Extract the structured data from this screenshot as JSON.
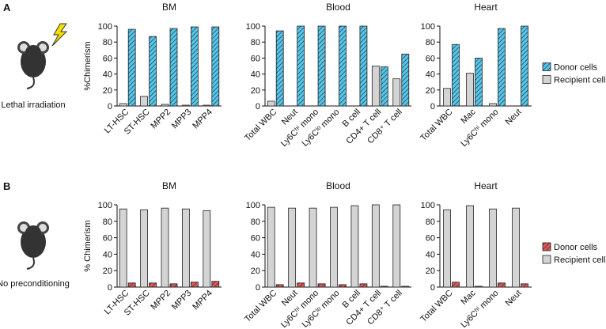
{
  "panels": [
    {
      "label": "A",
      "caption": "Lethal irradiation"
    },
    {
      "label": "B",
      "caption": "No preconditioning"
    }
  ],
  "chart_data": [
    {
      "type": "bar",
      "title": "BM",
      "ylabel": "%Chimerism",
      "categories": [
        "LT-HSC",
        "ST-HSC",
        "MPP2",
        "MPP3",
        "MPP4"
      ],
      "series": [
        {
          "name": "Recipient cells",
          "color": "#d4d4d4",
          "values": [
            3,
            12,
            2,
            1,
            1
          ]
        },
        {
          "name": "Donor cells",
          "color": "#55c6ea",
          "hatch": true,
          "values": [
            96,
            87,
            97,
            99,
            99
          ]
        }
      ],
      "ylim": [
        0,
        100
      ],
      "yticks": [
        0,
        20,
        40,
        60,
        80,
        100
      ]
    },
    {
      "type": "bar",
      "title": "Blood",
      "categories": [
        "Total WBC",
        "Neut",
        "Ly6Cʰⁱ mono",
        "Ly6Cˡᵒ mono",
        "B cell",
        "CD4+ T cell",
        "CD8⁺ T cell"
      ],
      "series": [
        {
          "name": "Recipient cells",
          "color": "#d4d4d4",
          "values": [
            6,
            0,
            0,
            0,
            0,
            50,
            34
          ]
        },
        {
          "name": "Donor cells",
          "color": "#55c6ea",
          "hatch": true,
          "values": [
            94,
            100,
            100,
            100,
            100,
            49,
            65
          ]
        }
      ],
      "ylim": [
        0,
        100
      ],
      "yticks": [
        0,
        20,
        40,
        60,
        80,
        100
      ]
    },
    {
      "type": "bar",
      "title": "Heart",
      "categories": [
        "Total WBC",
        "Mac",
        "Ly6Cʰⁱ mono",
        "Neut"
      ],
      "legend": "right",
      "series": [
        {
          "name": "Recipient cells",
          "color": "#d4d4d4",
          "values": [
            22,
            41,
            3,
            0
          ]
        },
        {
          "name": "Donor cells",
          "color": "#55c6ea",
          "hatch": true,
          "values": [
            77,
            60,
            97,
            100
          ]
        }
      ],
      "ylim": [
        0,
        100
      ],
      "yticks": [
        0,
        20,
        40,
        60,
        80,
        100
      ]
    },
    {
      "type": "bar",
      "title": "BM",
      "ylabel": "% Chimerism",
      "categories": [
        "LT-HSC",
        "ST-HSC",
        "MPP2",
        "MPP3",
        "MPP4"
      ],
      "series": [
        {
          "name": "Recipient cells",
          "color": "#d4d4d4",
          "values": [
            95,
            94,
            96,
            95,
            93
          ]
        },
        {
          "name": "Donor cells",
          "color": "#e05858",
          "hatch": true,
          "values": [
            5,
            5,
            4,
            6,
            7
          ]
        }
      ],
      "ylim": [
        0,
        100
      ],
      "yticks": [
        0,
        20,
        40,
        60,
        80,
        100
      ]
    },
    {
      "type": "bar",
      "title": "Blood",
      "categories": [
        "Total WBC",
        "Neut",
        "Ly6Cʰⁱ mono",
        "Ly6Cˡᵒ mono",
        "B cell",
        "CD4+ T cell",
        "CD8⁺ T cell"
      ],
      "series": [
        {
          "name": "Recipient cells",
          "color": "#d4d4d4",
          "values": [
            97,
            96,
            96,
            97,
            99,
            100,
            100
          ]
        },
        {
          "name": "Donor cells",
          "color": "#e05858",
          "hatch": true,
          "values": [
            3,
            5,
            4,
            3,
            4,
            1,
            1
          ]
        }
      ],
      "ylim": [
        0,
        100
      ],
      "yticks": [
        0,
        20,
        40,
        60,
        80,
        100
      ]
    },
    {
      "type": "bar",
      "title": "Heart",
      "categories": [
        "Total WBC",
        "Mac",
        "Ly6Cʰⁱ mono",
        "Neut"
      ],
      "legend": "right",
      "series": [
        {
          "name": "Recipient cells",
          "color": "#d4d4d4",
          "values": [
            94,
            99,
            95,
            96
          ]
        },
        {
          "name": "Donor cells",
          "color": "#e05858",
          "hatch": true,
          "values": [
            6,
            1,
            5,
            4
          ]
        }
      ],
      "ylim": [
        0,
        100
      ],
      "yticks": [
        0,
        20,
        40,
        60,
        80,
        100
      ]
    }
  ]
}
